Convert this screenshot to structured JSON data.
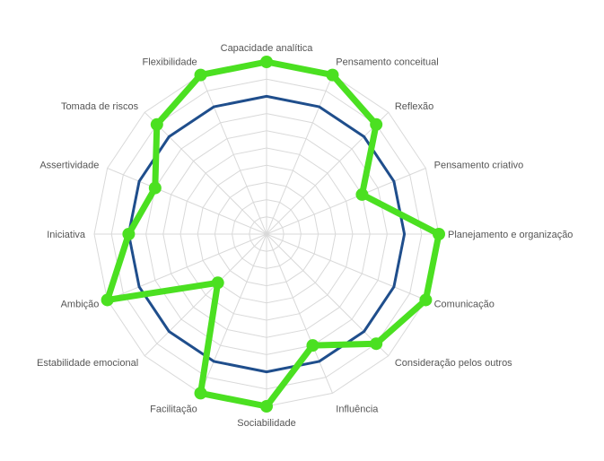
{
  "chart_data": {
    "type": "radar",
    "categories": [
      "Capacidade analítica",
      "Pensamento conceitual",
      "Reflexão",
      "Pensamento criativo",
      "Planejamento e organização",
      "Comunicação",
      "Consideração pelos outros",
      "Influência",
      "Sociabilidade",
      "Facilitação",
      "Estabilidade emocional",
      "Ambição",
      "Iniciativa",
      "Assertividade",
      "Tomada de riscos",
      "Flexibilidade"
    ],
    "range": [
      0,
      10
    ],
    "rings": 10,
    "grid": true,
    "legend": "none",
    "series": [
      {
        "values": [
          8,
          8,
          8,
          8,
          8,
          8,
          8,
          8,
          8,
          8,
          8,
          8,
          8,
          8,
          8,
          8
        ],
        "color": "#1f4e8c"
      },
      {
        "values": [
          10,
          10,
          9,
          6,
          10,
          10,
          9,
          7,
          10,
          10,
          4,
          10,
          8,
          7,
          9,
          10
        ],
        "color": "#4be021"
      }
    ],
    "colors": {
      "grid": "#d9d9d9",
      "label": "#555555"
    }
  }
}
